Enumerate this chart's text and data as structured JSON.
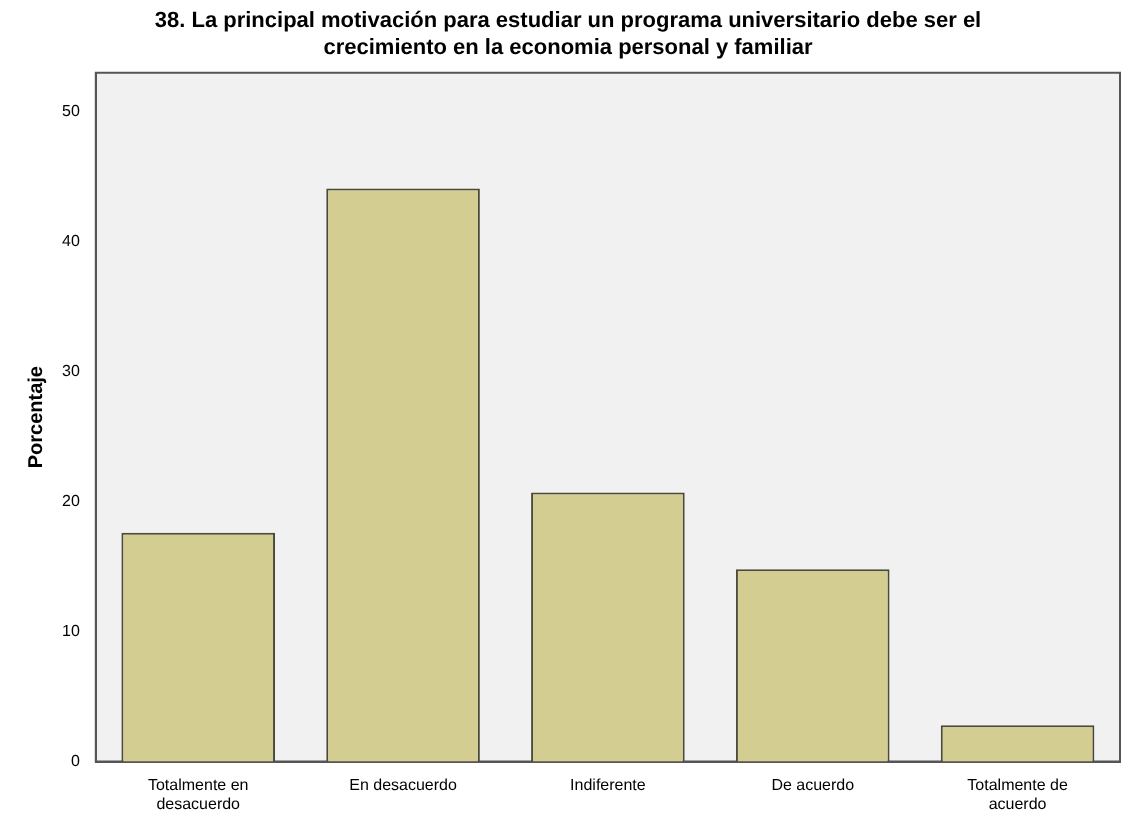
{
  "chart_data": {
    "type": "bar",
    "title": "38. La principal motivación para estudiar un programa universitario debe ser el\ncrecimiento en la economia personal y familiar",
    "ylabel": "Porcentaje",
    "categories": [
      "Totalmente en desacuerdo",
      "En desacuerdo",
      "Indiferente",
      "De acuerdo",
      "Totalmente de acuerdo"
    ],
    "values": [
      17.6,
      44.1,
      20.7,
      14.8,
      2.8
    ],
    "color": "#d3cd91",
    "ylim": [
      0,
      53
    ],
    "yticks": [
      0,
      10,
      20,
      30,
      40,
      50
    ],
    "grid": false,
    "legend": false
  }
}
